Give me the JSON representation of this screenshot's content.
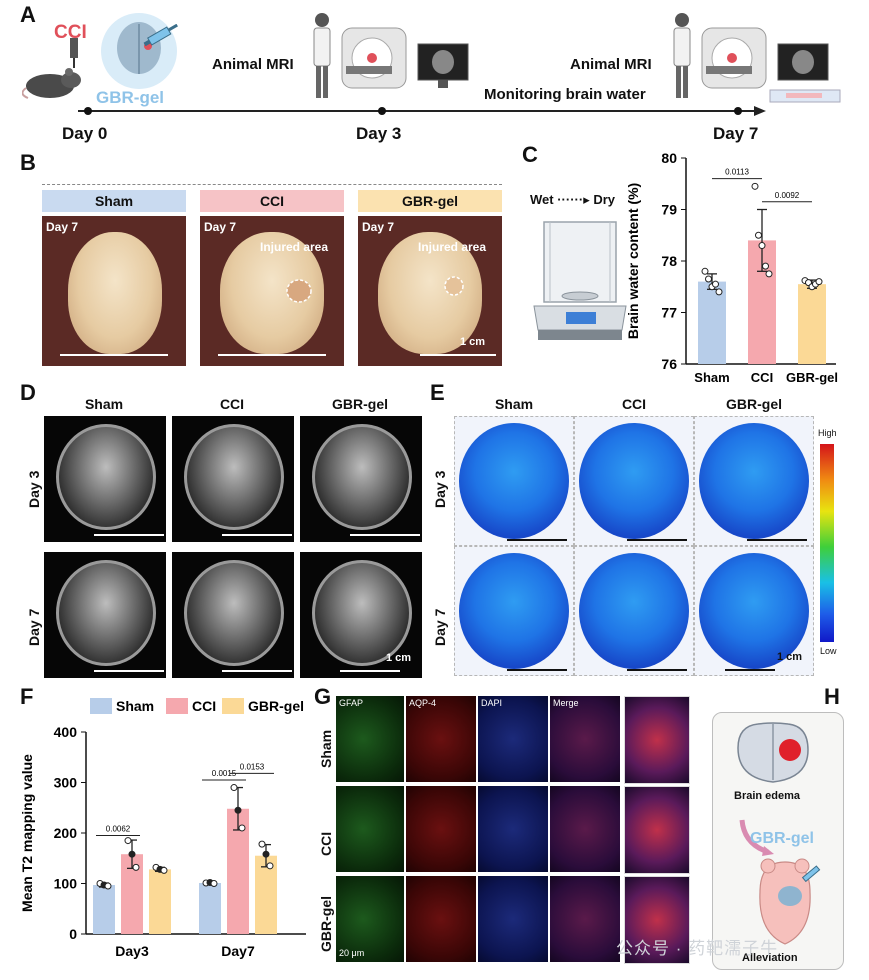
{
  "panels": {
    "A": "A",
    "B": "B",
    "C": "C",
    "D": "D",
    "E": "E",
    "F": "F",
    "G": "G",
    "H": "H"
  },
  "timeline": {
    "cci": "CCI",
    "gbr_gel": "GBR-gel",
    "mri1": "Animal MRI",
    "mri2": "Animal MRI",
    "monitor": "Monitoring brain water",
    "days": [
      "Day 0",
      "Day 3",
      "Day 7"
    ]
  },
  "photos": {
    "groups": [
      "Sham",
      "CCI",
      "GBR-gel"
    ],
    "group_colors": [
      "#c9daf0",
      "#f6c3c6",
      "#fbe2b0"
    ],
    "day": "Day 7",
    "injured": "Injured area",
    "scale": "1 cm"
  },
  "balance": {
    "wet": "Wet",
    "dry": "Dry"
  },
  "mri_panel": {
    "cols": [
      "Sham",
      "CCI",
      "GBR-gel"
    ],
    "rows": [
      "Day 3",
      "Day 7"
    ],
    "scale": "1 cm"
  },
  "t2_panel": {
    "cols": [
      "Sham",
      "CCI",
      "GBR-gel"
    ],
    "rows": [
      "Day 3",
      "Day 7"
    ],
    "scale": "1 cm",
    "cbar_high": "High",
    "cbar_low": "Low"
  },
  "fluo": {
    "cols": [
      "GFAP",
      "AQP-4",
      "DAPI",
      "Merge"
    ],
    "rows": [
      "Sham",
      "CCI",
      "GBR-gel"
    ],
    "scale": "20 μm"
  },
  "schematic": {
    "edema": "Brain edema",
    "drug": "GBR-gel",
    "result": "Alleviation"
  },
  "watermark": "公众号 · 药靶濡子牛",
  "chart_data": [
    {
      "id": "C",
      "type": "bar",
      "categories": [
        "Sham",
        "CCI",
        "GBR-gel"
      ],
      "values": [
        77.6,
        78.4,
        77.55
      ],
      "errors": [
        0.15,
        0.6,
        0.08
      ],
      "points": [
        [
          77.8,
          77.65,
          77.5,
          77.55,
          77.4
        ],
        [
          79.45,
          78.5,
          78.3,
          77.9,
          77.75
        ],
        [
          77.62,
          77.58,
          77.5,
          77.55,
          77.6
        ]
      ],
      "colors": [
        "#b7cde9",
        "#f5a8ae",
        "#fbd996"
      ],
      "ylabel": "Brain water content (%)",
      "ylim": [
        76,
        80
      ],
      "yticks": [
        76,
        77,
        78,
        79,
        80
      ],
      "annotations": [
        {
          "from": 0,
          "to": 1,
          "text": "0.0113"
        },
        {
          "from": 1,
          "to": 2,
          "text": "0.0092"
        }
      ]
    },
    {
      "id": "F",
      "type": "bar",
      "groups": [
        "Day3",
        "Day7"
      ],
      "series": [
        {
          "name": "Sham",
          "color": "#b7cde9",
          "values": [
            97,
            101
          ],
          "errors": [
            4,
            2
          ],
          "points": [
            [
              100,
              97,
              95
            ],
            [
              101,
              102,
              100
            ]
          ]
        },
        {
          "name": "CCI",
          "color": "#f5a8ae",
          "values": [
            158,
            248
          ],
          "errors": [
            28,
            42
          ],
          "points": [
            [
              185,
              158,
              132
            ],
            [
              290,
              245,
              210
            ]
          ]
        },
        {
          "name": "GBR-gel",
          "color": "#fbd996",
          "values": [
            128,
            155
          ],
          "errors": [
            4,
            22
          ],
          "points": [
            [
              132,
              128,
              126
            ],
            [
              178,
              158,
              135
            ]
          ]
        }
      ],
      "ylabel": "Mean T2 mapping value",
      "ylim": [
        0,
        400
      ],
      "yticks": [
        0,
        100,
        200,
        300,
        400
      ],
      "annotations": [
        {
          "group": 0,
          "from": 0,
          "to": 1,
          "text": "0.0062"
        },
        {
          "group": 1,
          "from": 0,
          "to": 1,
          "text": "0.0015"
        },
        {
          "group": 1,
          "from": 1,
          "to": 2,
          "text": "0.0153"
        }
      ]
    }
  ]
}
